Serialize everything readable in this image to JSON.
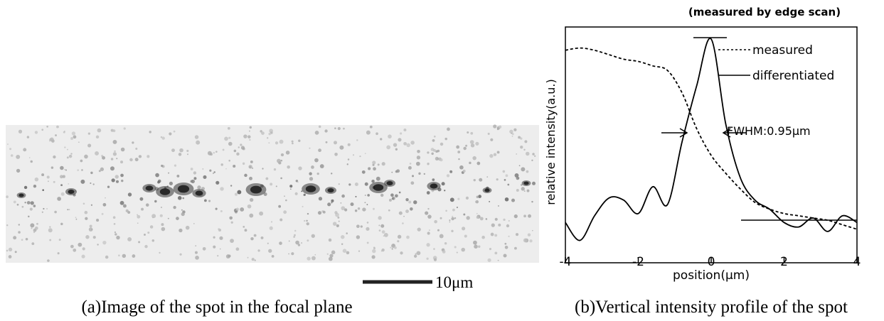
{
  "panel_a": {
    "scale_bar_label": "10μm",
    "caption": "(a)Image of the spot in the focal plane"
  },
  "chart_data": {
    "type": "line",
    "title": "(measured by edge scan)",
    "x_label": "position(μm)",
    "y_label": "relative intensity(a.u.)",
    "annotation": "FWHM:0.95μm",
    "caption": "(b)Vertical intensity profile of the spot",
    "x": [
      -4,
      -3.6,
      -3.2,
      -2.8,
      -2.4,
      -2,
      -1.6,
      -1.2,
      -0.8,
      -0.4,
      0,
      0.4,
      0.8,
      1.2,
      1.6,
      2,
      2.4,
      2.8,
      3.2,
      3.6,
      4
    ],
    "series": [
      {
        "name": "measured",
        "color": "#000000",
        "style": "dotted",
        "values": [
          0.95,
          0.96,
          0.95,
          0.93,
          0.91,
          0.9,
          0.88,
          0.86,
          0.76,
          0.6,
          0.48,
          0.4,
          0.33,
          0.27,
          0.24,
          0.22,
          0.21,
          0.2,
          0.19,
          0.17,
          0.15
        ]
      },
      {
        "name": "differentiated",
        "color": "#000000",
        "style": "solid",
        "values": [
          0.18,
          0.1,
          0.21,
          0.29,
          0.28,
          0.22,
          0.34,
          0.26,
          0.54,
          0.79,
          1.0,
          0.62,
          0.38,
          0.28,
          0.24,
          0.18,
          0.16,
          0.2,
          0.14,
          0.21,
          0.18
        ]
      }
    ],
    "xlim": [
      -4,
      4
    ],
    "xticks": [
      -4,
      -2,
      0,
      2,
      4
    ],
    "ylim": [
      0,
      1
    ]
  }
}
